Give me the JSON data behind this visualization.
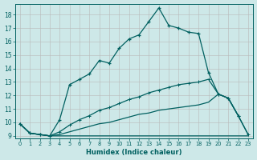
{
  "bg_color": "#cde8e8",
  "grid_color": "#b8b8b8",
  "line_color": "#006060",
  "xlabel": "Humidex (Indice chaleur)",
  "xlim": [
    -0.5,
    23.5
  ],
  "ylim": [
    8.8,
    18.8
  ],
  "yticks": [
    9,
    10,
    11,
    12,
    13,
    14,
    15,
    16,
    17,
    18
  ],
  "xticks": [
    0,
    1,
    2,
    3,
    4,
    5,
    6,
    7,
    8,
    9,
    10,
    11,
    12,
    13,
    14,
    15,
    16,
    17,
    18,
    19,
    20,
    21,
    22,
    23
  ],
  "curve1_x": [
    0,
    1,
    2,
    3,
    4,
    5,
    6,
    7,
    8,
    9,
    10,
    11,
    12,
    13,
    14,
    15,
    16,
    17,
    18,
    19,
    20,
    21,
    22
  ],
  "curve1_y": [
    9.9,
    9.2,
    9.1,
    9.0,
    10.2,
    12.8,
    13.2,
    13.6,
    14.6,
    14.4,
    15.5,
    16.2,
    16.5,
    17.5,
    18.5,
    17.2,
    17.0,
    16.7,
    16.6,
    13.7,
    12.1,
    11.8,
    10.5
  ],
  "curve2_x": [
    0,
    1,
    2,
    3,
    4,
    5,
    6,
    7,
    8,
    9,
    10,
    11,
    12,
    13,
    14,
    15,
    16,
    17,
    18,
    19,
    20,
    21,
    22,
    23
  ],
  "curve2_y": [
    9.9,
    9.2,
    9.1,
    9.0,
    9.3,
    9.8,
    10.2,
    10.5,
    10.9,
    11.1,
    11.4,
    11.7,
    11.9,
    12.2,
    12.4,
    12.6,
    12.8,
    12.9,
    13.0,
    13.2,
    12.1,
    11.8,
    10.5,
    9.1
  ],
  "curve3_x": [
    0,
    1,
    2,
    3,
    4,
    5,
    6,
    7,
    8,
    9,
    10,
    11,
    12,
    13,
    14,
    15,
    16,
    17,
    18,
    19,
    20,
    21,
    22,
    23
  ],
  "curve3_y": [
    9.9,
    9.2,
    9.1,
    9.0,
    9.1,
    9.3,
    9.5,
    9.7,
    9.9,
    10.0,
    10.2,
    10.4,
    10.6,
    10.7,
    10.9,
    11.0,
    11.1,
    11.2,
    11.3,
    11.5,
    12.1,
    11.8,
    10.5,
    9.1
  ],
  "curve4_x": [
    0,
    1,
    2,
    3,
    4,
    5,
    6,
    7,
    8,
    9,
    10,
    11,
    12,
    13,
    14,
    15,
    16,
    17,
    18,
    19,
    20,
    21,
    22,
    23
  ],
  "curve4_y": [
    9.9,
    9.2,
    9.1,
    9.0,
    9.0,
    9.0,
    9.0,
    9.0,
    9.0,
    9.0,
    9.0,
    9.0,
    9.0,
    9.0,
    9.0,
    9.0,
    9.0,
    9.0,
    9.0,
    9.0,
    9.0,
    9.0,
    9.0,
    9.0
  ]
}
